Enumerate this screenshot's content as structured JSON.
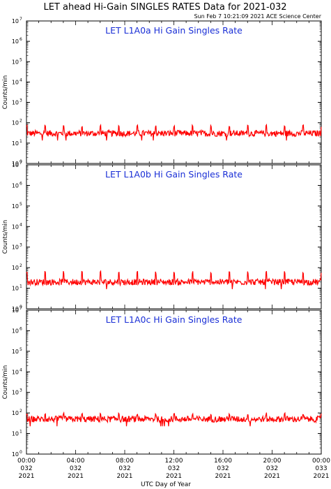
{
  "header": {
    "title": "LET ahead Hi-Gain SINGLES RATES Data for 2021-032",
    "timestamp": "Sun Feb  7 10:21:09 2021 ACE Science Center"
  },
  "colors": {
    "trace": "#ff0000",
    "panel_title": "#1a2fd6",
    "axes": "#000000"
  },
  "chart_data": [
    {
      "type": "line",
      "title": "LET L1A0a Hi Gain Singles Rate",
      "ylabel": "Counts/min",
      "xlabel": "",
      "yscale": "log",
      "ylim": [
        1,
        10000000
      ],
      "xlim": [
        0,
        24
      ],
      "baseline": 30,
      "spike_every_hours": 1.5,
      "spike_peak": 70,
      "series": [
        {
          "values_description_free": true
        }
      ]
    },
    {
      "type": "line",
      "title": "LET L1A0b Hi Gain Singles Rate",
      "ylabel": "Counts/min",
      "xlabel": "",
      "yscale": "log",
      "ylim": [
        1,
        10000000
      ],
      "xlim": [
        0,
        24
      ],
      "baseline": 20,
      "spike_every_hours": 1.5,
      "spike_peak": 60,
      "series": [
        {
          "values_description_free": true
        }
      ]
    },
    {
      "type": "line",
      "title": "LET L1A0c Hi Gain Singles Rate",
      "ylabel": "Counts/min",
      "xlabel": "UTC Day of Year",
      "yscale": "log",
      "ylim": [
        1,
        10000000
      ],
      "xlim": [
        0,
        24
      ],
      "baseline": 50,
      "spike_every_hours": 1.5,
      "spike_peak": 90,
      "series": [
        {
          "values_description_free": true
        }
      ]
    }
  ],
  "y_ticks": [
    {
      "base": "10",
      "exp": "0"
    },
    {
      "base": "10",
      "exp": "1"
    },
    {
      "base": "10",
      "exp": "2"
    },
    {
      "base": "10",
      "exp": "3"
    },
    {
      "base": "10",
      "exp": "4"
    },
    {
      "base": "10",
      "exp": "5"
    },
    {
      "base": "10",
      "exp": "6"
    },
    {
      "base": "10",
      "exp": "7"
    }
  ],
  "x_ticks": [
    {
      "time": "00:00",
      "doy": "032",
      "year": "2021"
    },
    {
      "time": "04:00",
      "doy": "032",
      "year": "2021"
    },
    {
      "time": "08:00",
      "doy": "032",
      "year": "2021"
    },
    {
      "time": "12:00",
      "doy": "032",
      "year": "2021"
    },
    {
      "time": "16:00",
      "doy": "032",
      "year": "2021"
    },
    {
      "time": "20:00",
      "doy": "032",
      "year": "2021"
    },
    {
      "time": "00:00",
      "doy": "033",
      "year": "2021"
    }
  ],
  "xlabel": "UTC Day of Year"
}
